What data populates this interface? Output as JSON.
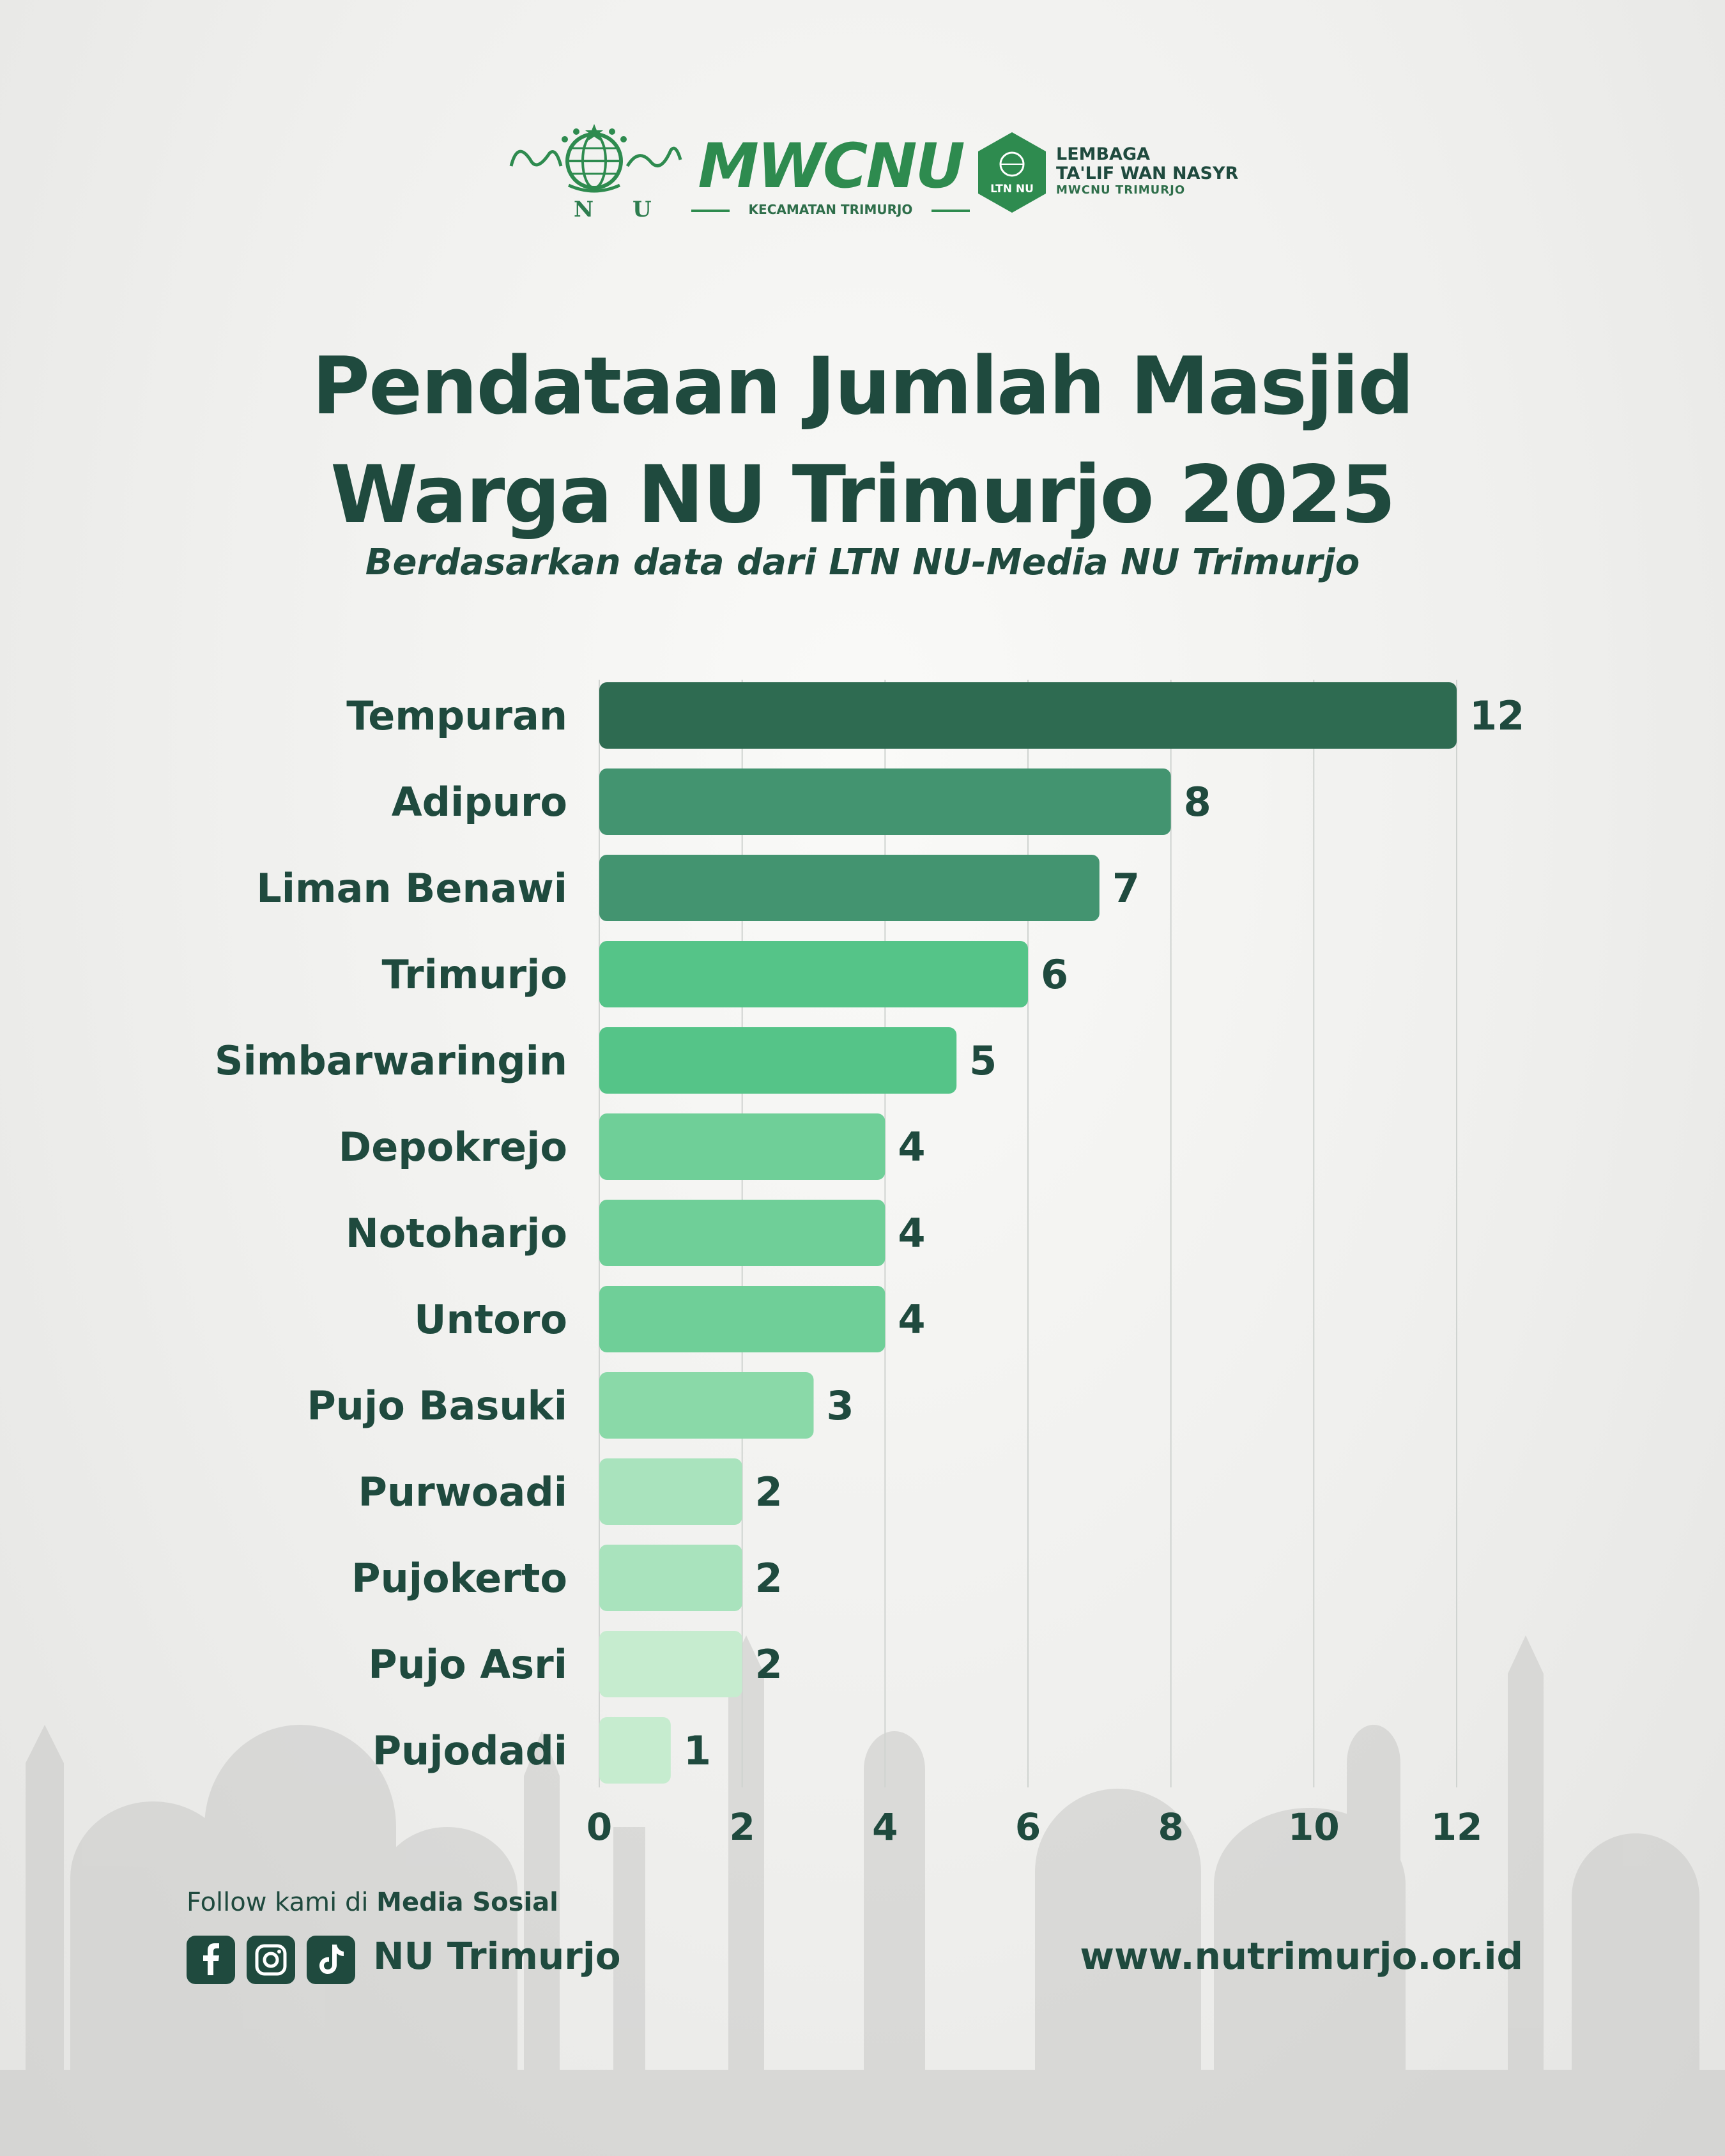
{
  "header": {
    "nu_logo_letters": [
      "N",
      "U"
    ],
    "mwcnu_title": "MWCNU",
    "mwcnu_subtitle": "KECAMATAN TRIMURJO",
    "ltn_badge_text": "LTN NU",
    "ltn_line1": "LEMBAGA",
    "ltn_line2": "TA'LIF WAN NASYR",
    "ltn_line3": "MWCNU TRIMURJO"
  },
  "chart_data": {
    "type": "bar",
    "orientation": "horizontal",
    "title": "Pendataan Jumlah Masjid Warga NU Trimurjo 2025",
    "title_lines": [
      "Pendataan Jumlah Masjid",
      "Warga NU Trimurjo 2025"
    ],
    "subtitle": "Berdasarkan data dari LTN NU-Media NU Trimurjo",
    "categories": [
      "Tempuran",
      "Adipuro",
      "Liman Benawi",
      "Trimurjo",
      "Simbarwaringin",
      "Depokrejo",
      "Notoharjo",
      "Untoro",
      "Pujo Basuki",
      "Purwoadi",
      "Pujokerto",
      "Pujo Asri",
      "Pujodadi"
    ],
    "values": [
      12,
      8,
      7,
      6,
      5,
      4,
      4,
      4,
      3,
      2,
      2,
      2,
      1
    ],
    "bar_colors": [
      "#2e6b51",
      "#439470",
      "#439470",
      "#55c488",
      "#55c488",
      "#6fcf98",
      "#6fcf98",
      "#6fcf98",
      "#8ad9a8",
      "#a9e3bd",
      "#a9e3bd",
      "#c6eccf",
      "#c6eccf"
    ],
    "xlim": [
      0,
      12
    ],
    "xticks": [
      "0",
      "2",
      "4",
      "6",
      "8",
      "10",
      "12"
    ],
    "grid": true,
    "xlabel": "",
    "ylabel": ""
  },
  "footer": {
    "follow_prefix": "Follow kami di ",
    "follow_bold": "Media Sosial",
    "social_icons": [
      "facebook-icon",
      "instagram-icon",
      "tiktok-icon"
    ],
    "social_handle": "NU Trimurjo",
    "website": "www.nutrimurjo.or.id"
  },
  "colors": {
    "text_dark": "#1f4a3e",
    "brand_green": "#2e8b4f"
  }
}
